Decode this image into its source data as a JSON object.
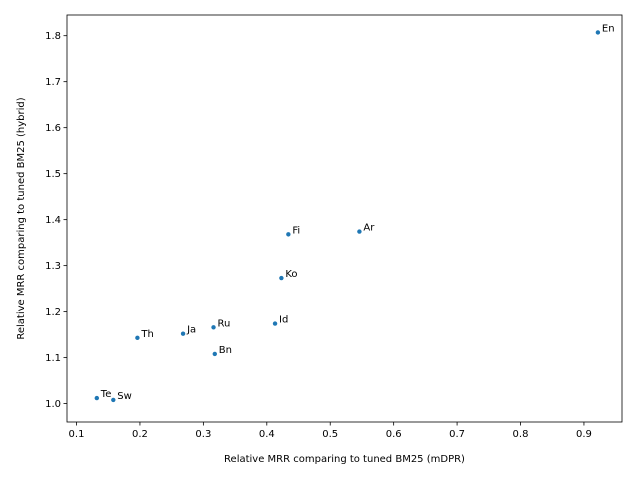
{
  "chart_data": {
    "type": "scatter",
    "title": "",
    "xlabel": "Relative MRR comparing to tuned BM25 (mDPR)",
    "ylabel": "Relative MRR comparing to tuned BM25 (hybrid)",
    "xlim": [
      0.085,
      0.96
    ],
    "ylim": [
      0.96,
      1.845
    ],
    "xticks": [
      0.1,
      0.2,
      0.3,
      0.4,
      0.5,
      0.6,
      0.7,
      0.8,
      0.9
    ],
    "xtick_labels": [
      "0.1",
      "0.2",
      "0.3",
      "0.4",
      "0.5",
      "0.6",
      "0.7",
      "0.8",
      "0.9"
    ],
    "yticks": [
      1.0,
      1.1,
      1.2,
      1.3,
      1.4,
      1.5,
      1.6,
      1.7,
      1.8
    ],
    "ytick_labels": [
      "1.0",
      "1.1",
      "1.2",
      "1.3",
      "1.4",
      "1.5",
      "1.6",
      "1.7",
      "1.8"
    ],
    "grid": false,
    "color": "#1f77b4",
    "points": [
      {
        "label": "En",
        "x": 0.922,
        "y": 1.807
      },
      {
        "label": "Ar",
        "x": 0.546,
        "y": 1.374
      },
      {
        "label": "Fi",
        "x": 0.434,
        "y": 1.368
      },
      {
        "label": "Ko",
        "x": 0.423,
        "y": 1.273
      },
      {
        "label": "Id",
        "x": 0.413,
        "y": 1.174
      },
      {
        "label": "Ru",
        "x": 0.316,
        "y": 1.166
      },
      {
        "label": "Ja",
        "x": 0.268,
        "y": 1.152
      },
      {
        "label": "Th",
        "x": 0.196,
        "y": 1.143
      },
      {
        "label": "Bn",
        "x": 0.318,
        "y": 1.108
      },
      {
        "label": "Te",
        "x": 0.132,
        "y": 1.012
      },
      {
        "label": "Sw",
        "x": 0.158,
        "y": 1.008
      }
    ]
  }
}
